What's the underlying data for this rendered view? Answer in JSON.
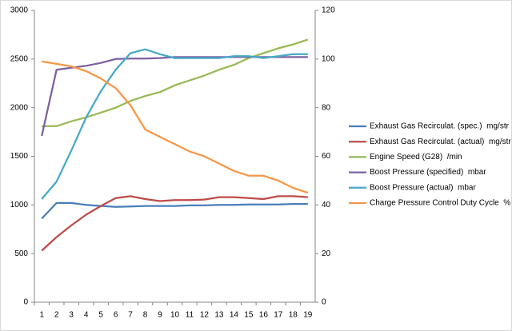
{
  "chart_data": {
    "type": "line",
    "categories": [
      1,
      2,
      3,
      4,
      5,
      6,
      7,
      8,
      9,
      10,
      11,
      12,
      13,
      14,
      15,
      16,
      17,
      18,
      19
    ],
    "ylim": [
      0,
      3000
    ],
    "yticks": [
      0,
      500,
      1000,
      1500,
      2000,
      2500,
      3000
    ],
    "y2lim": [
      0,
      120
    ],
    "y2ticks": [
      0,
      20,
      40,
      60,
      80,
      100,
      120
    ],
    "grid": false,
    "legend": "right",
    "series": [
      {
        "name": "Exhaust Gas Recirculat. (spec.)  mg/str",
        "color": "#4a7ebb",
        "values": [
          860,
          1020,
          1020,
          1000,
          990,
          980,
          985,
          990,
          990,
          990,
          995,
          995,
          1000,
          1000,
          1005,
          1005,
          1005,
          1010,
          1010
        ]
      },
      {
        "name": "Exhaust Gas Recirculat. (actual)  mg/str",
        "color": "#be4b48",
        "values": [
          530,
          670,
          790,
          900,
          990,
          1070,
          1090,
          1060,
          1040,
          1050,
          1050,
          1055,
          1080,
          1080,
          1070,
          1060,
          1090,
          1090,
          1080
        ]
      },
      {
        "name": "Engine Speed (G28)  /min",
        "color": "#98b954",
        "values": [
          1810,
          1810,
          1860,
          1900,
          1950,
          2000,
          2070,
          2120,
          2160,
          2230,
          2280,
          2330,
          2390,
          2440,
          2510,
          2560,
          2610,
          2650,
          2700
        ]
      },
      {
        "name": "Boost Pressure (specified)  mbar",
        "color": "#7d60a0",
        "values": [
          1710,
          2390,
          2410,
          2430,
          2460,
          2500,
          2505,
          2505,
          2510,
          2520,
          2520,
          2520,
          2520,
          2520,
          2520,
          2520,
          2520,
          2520,
          2520
        ]
      },
      {
        "name": "Boost Pressure (actual)  mbar",
        "color": "#46aac5",
        "values": [
          1060,
          1240,
          1560,
          1900,
          2170,
          2390,
          2560,
          2600,
          2550,
          2510,
          2510,
          2510,
          2510,
          2530,
          2530,
          2510,
          2530,
          2550,
          2550
        ]
      },
      {
        "name": "Charge Pressure Control Duty Cycle  %",
        "color": "#f79646",
        "axis": "y2",
        "values": [
          99,
          98,
          97,
          95,
          92,
          88,
          81,
          71,
          68,
          65,
          62,
          60,
          57,
          54,
          52,
          52,
          50,
          47,
          45
        ]
      }
    ]
  }
}
